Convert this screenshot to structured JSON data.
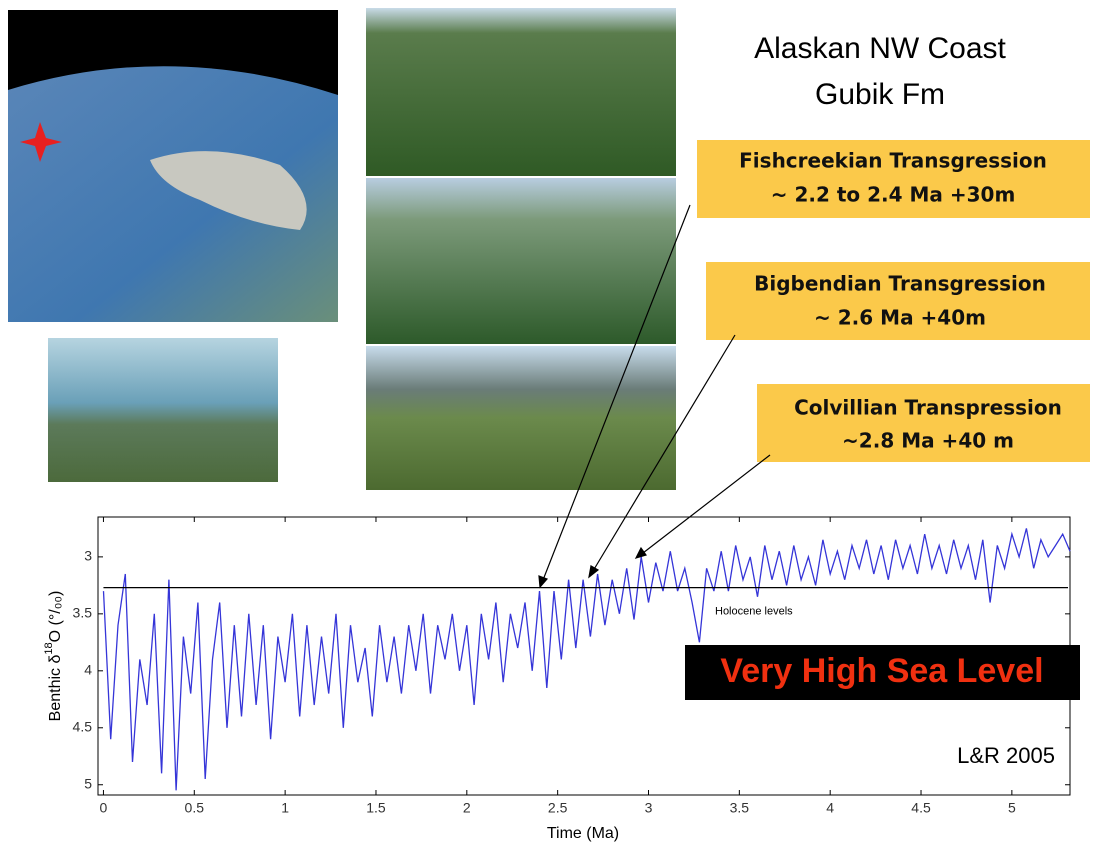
{
  "chart_data": {
    "type": "line",
    "title_lines": [
      "Alaskan NW Coast",
      "Gubik Fm"
    ],
    "callouts": [
      {
        "lines": [
          "Fishcreekian Transgression",
          "~ 2.2 to 2.4 Ma   +30m"
        ]
      },
      {
        "lines": [
          "Bigbendian Transgression",
          "~ 2.6 Ma +40m"
        ]
      },
      {
        "lines": [
          "Colvillian Transpression",
          "~2.8 Ma    +40 m"
        ]
      }
    ],
    "banner": "Very High Sea Level",
    "credit": "L&R 2005",
    "xlabel": "Time (Ma)",
    "ylabel": [
      "Benthic δ",
      "18",
      "O (°/₀₀)"
    ],
    "reference_line": {
      "value": 3.27,
      "label": "Holocene levels"
    },
    "xlim": [
      -0.03,
      5.32
    ],
    "ylim": [
      2.65,
      5.09
    ],
    "invert_y": true,
    "xticks": [
      0,
      0.5,
      1,
      1.5,
      2,
      2.5,
      3,
      3.5,
      4,
      4.5,
      5
    ],
    "yticks": [
      3,
      3.5,
      4,
      4.5,
      5
    ],
    "x": [
      0,
      0.04,
      0.08,
      0.12,
      0.16,
      0.2,
      0.24,
      0.28,
      0.32,
      0.36,
      0.4,
      0.44,
      0.48,
      0.52,
      0.56,
      0.6,
      0.64,
      0.68,
      0.72,
      0.76,
      0.8,
      0.84,
      0.88,
      0.92,
      0.96,
      1,
      1.04,
      1.08,
      1.12,
      1.16,
      1.2,
      1.24,
      1.28,
      1.32,
      1.36,
      1.4,
      1.44,
      1.48,
      1.52,
      1.56,
      1.6,
      1.64,
      1.68,
      1.72,
      1.76,
      1.8,
      1.84,
      1.88,
      1.92,
      1.96,
      2,
      2.04,
      2.08,
      2.12,
      2.16,
      2.2,
      2.24,
      2.28,
      2.32,
      2.36,
      2.4,
      2.44,
      2.48,
      2.52,
      2.56,
      2.6,
      2.64,
      2.68,
      2.72,
      2.76,
      2.8,
      2.84,
      2.88,
      2.92,
      2.96,
      3,
      3.04,
      3.08,
      3.12,
      3.16,
      3.2,
      3.24,
      3.28,
      3.32,
      3.36,
      3.4,
      3.44,
      3.48,
      3.52,
      3.56,
      3.6,
      3.64,
      3.68,
      3.72,
      3.76,
      3.8,
      3.84,
      3.88,
      3.92,
      3.96,
      4,
      4.04,
      4.08,
      4.12,
      4.16,
      4.2,
      4.24,
      4.28,
      4.32,
      4.36,
      4.4,
      4.44,
      4.48,
      4.52,
      4.56,
      4.6,
      4.64,
      4.68,
      4.72,
      4.76,
      4.8,
      4.84,
      4.88,
      4.92,
      4.96,
      5,
      5.04,
      5.08,
      5.12,
      5.16,
      5.2,
      5.24,
      5.28,
      5.32
    ],
    "series": [
      {
        "color": "#3535d8",
        "values": [
          3.3,
          4.6,
          3.6,
          3.15,
          4.8,
          3.9,
          4.3,
          3.5,
          4.9,
          3.2,
          5.05,
          3.7,
          4.2,
          3.4,
          4.95,
          3.9,
          3.4,
          4.5,
          3.6,
          4.4,
          3.5,
          4.3,
          3.6,
          4.6,
          3.7,
          4.1,
          3.5,
          4.4,
          3.6,
          4.3,
          3.7,
          4.2,
          3.5,
          4.5,
          3.6,
          4.1,
          3.8,
          4.4,
          3.6,
          4.1,
          3.7,
          4.2,
          3.6,
          4.0,
          3.5,
          4.2,
          3.6,
          3.9,
          3.5,
          4.0,
          3.6,
          4.3,
          3.5,
          3.9,
          3.4,
          4.1,
          3.5,
          3.8,
          3.4,
          4.0,
          3.3,
          4.15,
          3.3,
          3.9,
          3.2,
          3.8,
          3.2,
          3.7,
          3.15,
          3.6,
          3.2,
          3.5,
          3.1,
          3.55,
          3.0,
          3.4,
          3.05,
          3.3,
          2.95,
          3.3,
          3.1,
          3.4,
          3.75,
          3.1,
          3.3,
          2.95,
          3.3,
          2.9,
          3.2,
          3.0,
          3.35,
          2.9,
          3.2,
          2.95,
          3.25,
          2.9,
          3.2,
          3.0,
          3.25,
          2.85,
          3.15,
          2.95,
          3.2,
          2.9,
          3.1,
          2.85,
          3.15,
          2.9,
          3.2,
          2.85,
          3.1,
          2.9,
          3.15,
          2.8,
          3.1,
          2.9,
          3.15,
          2.85,
          3.1,
          2.9,
          3.2,
          2.85,
          3.4,
          2.9,
          3.1,
          2.8,
          3.0,
          2.75,
          3.1,
          2.85,
          3.0,
          2.9,
          2.8,
          2.95
        ]
      }
    ]
  }
}
